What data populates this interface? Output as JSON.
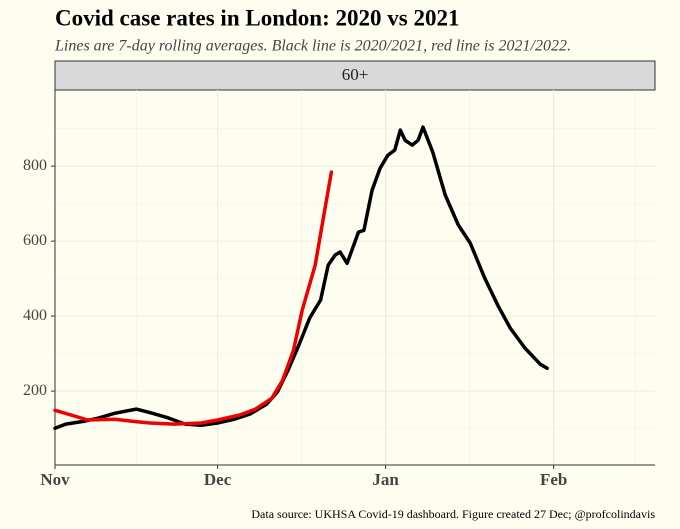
{
  "chart_data": {
    "type": "line",
    "title": "Covid case rates in London: 2020 vs 2021",
    "subtitle": "Lines are 7-day rolling averages. Black line is 2020/2021, red line is 2021/2022.",
    "facet": "60+",
    "caption": "Data source: UKHSA Covid-19 dashboard. Figure created 27 Dec; @profcolindavis",
    "xlim": [
      0,
      110.7
    ],
    "xticks": [
      {
        "value": 0,
        "label": "Nov"
      },
      {
        "value": 30,
        "label": "Dec"
      },
      {
        "value": 61,
        "label": "Jan"
      },
      {
        "value": 92,
        "label": "Feb"
      }
    ],
    "xminor": [
      15,
      45.5,
      76.5,
      107
    ],
    "ylim": [
      3,
      1003
    ],
    "yticks": [
      200,
      400,
      600,
      800
    ],
    "yminor": [
      100,
      300,
      500,
      700,
      900
    ],
    "grid": true,
    "series": [
      {
        "name": "2020/2021",
        "color": "#000000",
        "x": [
          0,
          2,
          5.5,
          8,
          11,
          15,
          18,
          21,
          24,
          27,
          30,
          33,
          36,
          39,
          41,
          43,
          45,
          47,
          49,
          50.4,
          51.7,
          52.6,
          53.9,
          56,
          57,
          58.5,
          60,
          61.4,
          62.7,
          63.7,
          64.6,
          65.9,
          67,
          67.9,
          69.7,
          72,
          74.4,
          76.6,
          79.3,
          81.7,
          84,
          86.7,
          89.5,
          90.8
        ],
        "values": [
          101,
          112,
          120,
          128,
          141,
          152,
          141,
          128,
          112,
          109,
          115,
          125,
          139,
          165,
          197,
          256,
          323,
          395,
          443,
          536,
          563,
          571,
          541,
          624,
          629,
          736,
          795,
          829,
          843,
          896,
          869,
          856,
          869,
          904,
          837,
          723,
          643,
          595,
          501,
          429,
          368,
          315,
          272,
          261
        ]
      },
      {
        "name": "2021/2022",
        "color": "#ee0000",
        "x": [
          0,
          3,
          6,
          11,
          14,
          17.5,
          22,
          27,
          30,
          34,
          37,
          40,
          42,
          44,
          45.6,
          48,
          49.5,
          51
        ],
        "values": [
          149,
          136,
          123,
          125,
          120,
          115,
          112,
          115,
          123,
          136,
          152,
          181,
          229,
          309,
          416,
          536,
          661,
          784
        ]
      }
    ]
  }
}
